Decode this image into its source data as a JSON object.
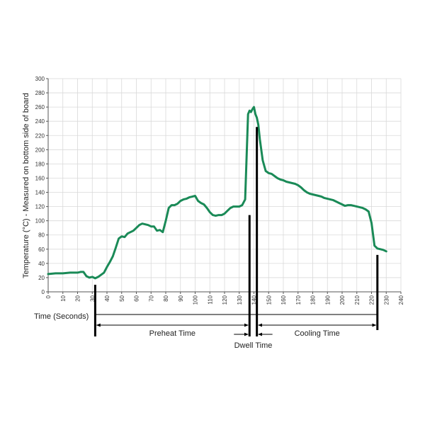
{
  "chart_data": {
    "type": "line",
    "title": "",
    "xlabel": "Time (Seconds)",
    "ylabel": "Temperature (°C) - Measured on bottom side of board",
    "xlim": [
      0,
      240
    ],
    "ylim": [
      0,
      300
    ],
    "x_ticks": [
      0,
      10,
      20,
      30,
      40,
      50,
      60,
      70,
      80,
      90,
      100,
      110,
      120,
      130,
      140,
      150,
      160,
      170,
      180,
      190,
      200,
      210,
      220,
      230,
      240
    ],
    "y_ticks": [
      0,
      20,
      40,
      60,
      80,
      100,
      120,
      140,
      160,
      180,
      200,
      220,
      240,
      260,
      280,
      300
    ],
    "grid": true,
    "line_color": "#1a8a57",
    "series": [
      {
        "name": "",
        "x": [
          0,
          5,
          10,
          15,
          20,
          22,
          24,
          26,
          28,
          30,
          32,
          34,
          36,
          38,
          40,
          42,
          44,
          46,
          48,
          50,
          52,
          54,
          56,
          58,
          60,
          62,
          64,
          66,
          68,
          70,
          72,
          74,
          76,
          78,
          80,
          82,
          84,
          86,
          88,
          90,
          92,
          94,
          96,
          98,
          100,
          102,
          104,
          106,
          108,
          110,
          112,
          114,
          116,
          118,
          120,
          122,
          124,
          126,
          128,
          130,
          132,
          134,
          136,
          137,
          138,
          139,
          140,
          141,
          142,
          143,
          144,
          146,
          148,
          150,
          152,
          154,
          156,
          158,
          160,
          162,
          164,
          166,
          168,
          170,
          172,
          174,
          176,
          178,
          180,
          182,
          184,
          186,
          188,
          190,
          192,
          194,
          196,
          198,
          200,
          202,
          204,
          206,
          208,
          210,
          212,
          214,
          216,
          218,
          220,
          222,
          224,
          226,
          228,
          230
        ],
        "y": [
          25,
          26,
          26,
          27,
          27,
          28,
          28,
          22,
          20,
          21,
          19,
          21,
          24,
          27,
          35,
          42,
          50,
          62,
          75,
          78,
          77,
          82,
          84,
          86,
          90,
          94,
          96,
          95,
          94,
          92,
          92,
          86,
          87,
          84,
          100,
          118,
          122,
          122,
          124,
          128,
          130,
          131,
          133,
          134,
          135,
          128,
          125,
          123,
          118,
          112,
          108,
          107,
          108,
          108,
          110,
          114,
          118,
          120,
          120,
          120,
          122,
          130,
          250,
          255,
          253,
          257,
          260,
          250,
          245,
          235,
          215,
          185,
          170,
          167,
          166,
          163,
          160,
          158,
          157,
          155,
          154,
          153,
          152,
          150,
          147,
          143,
          140,
          138,
          137,
          136,
          135,
          134,
          132,
          131,
          130,
          129,
          127,
          125,
          123,
          121,
          122,
          122,
          121,
          120,
          119,
          118,
          116,
          113,
          97,
          65,
          61,
          60,
          59,
          57
        ]
      }
    ],
    "phases": [
      {
        "label": "Preheat Time",
        "start": 32,
        "end": 137
      },
      {
        "label": "Dwell Time",
        "start": 137,
        "end": 142
      },
      {
        "label": "Cooling Time",
        "start": 142,
        "end": 224
      }
    ]
  }
}
